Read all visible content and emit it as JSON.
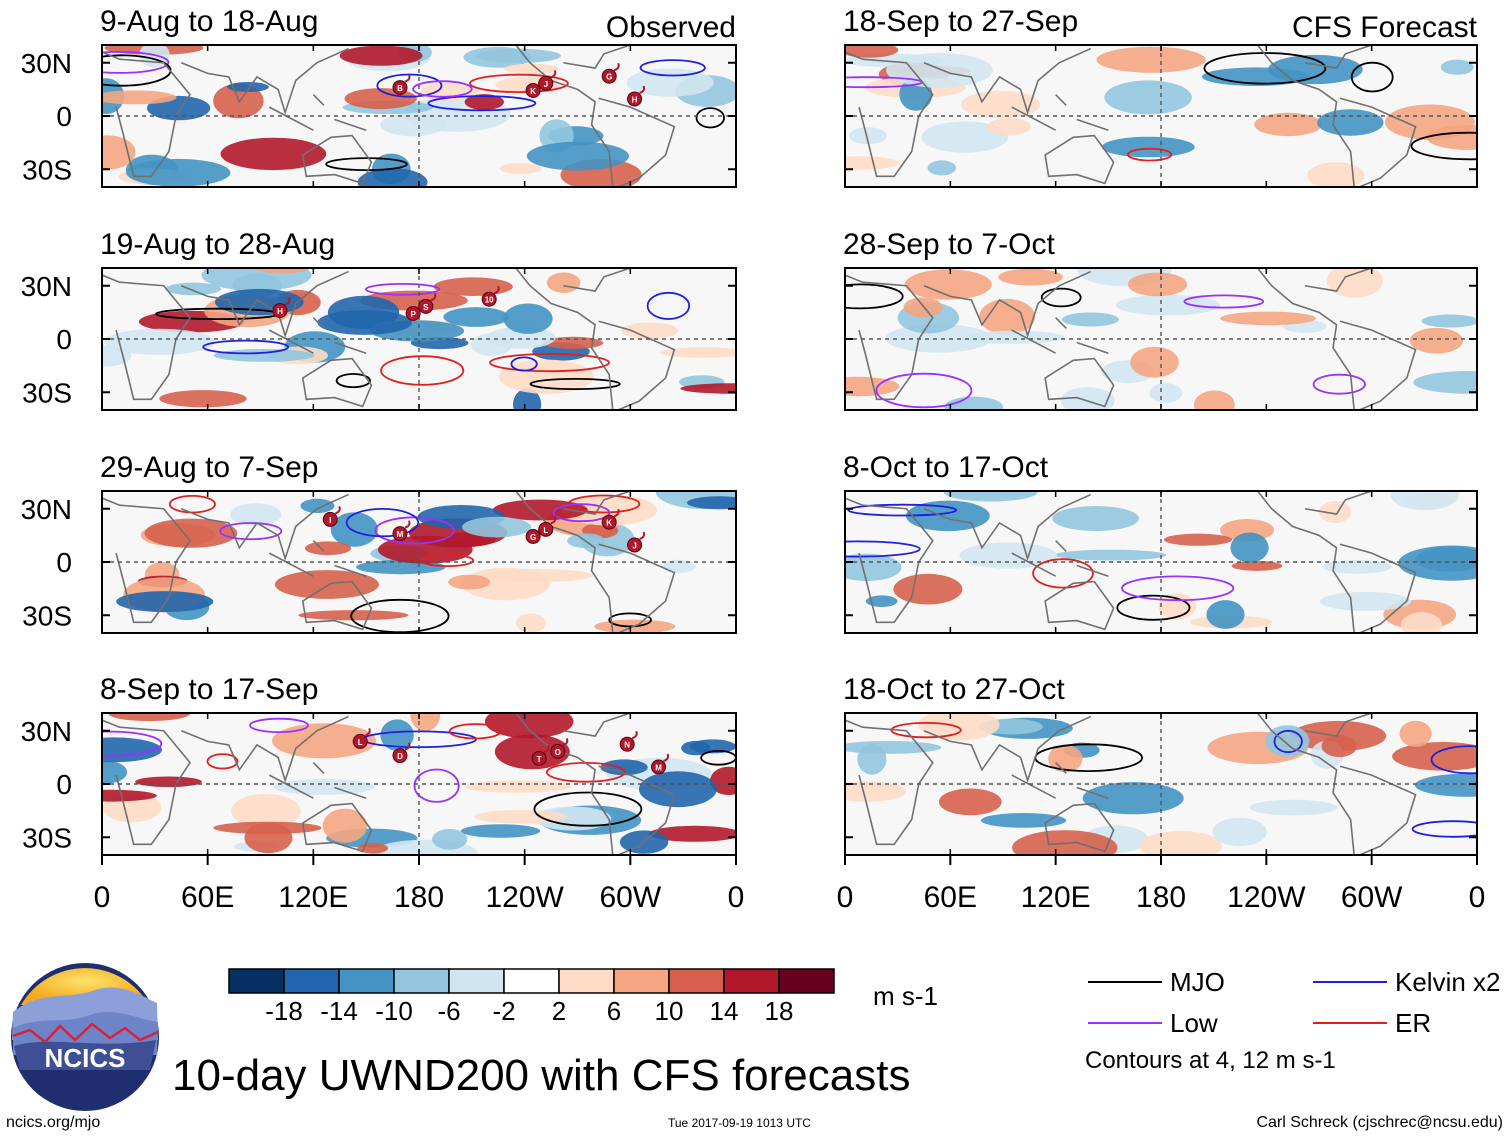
{
  "chart_data": {
    "type": "heatmap",
    "title": "10-day UWND200 with CFS forecasts",
    "units": "m s-1",
    "columns": [
      {
        "label": "Observed",
        "panels": [
          "9-Aug to 18-Aug",
          "19-Aug to 28-Aug",
          "29-Aug to 7-Sep",
          "8-Sep to 17-Sep"
        ]
      },
      {
        "label": "CFS Forecast",
        "panels": [
          "18-Sep to 27-Sep",
          "28-Sep to 7-Oct",
          "8-Oct to 17-Oct",
          "18-Oct to 27-Oct"
        ]
      }
    ],
    "y_ticks": [
      "30N",
      "0",
      "30S"
    ],
    "y_tick_values": [
      30,
      0,
      -30
    ],
    "ylim": [
      -40,
      40
    ],
    "x_ticks": [
      "0",
      "60E",
      "120E",
      "180",
      "120W",
      "60W",
      "0"
    ],
    "x_tick_values": [
      0,
      60,
      120,
      180,
      240,
      300,
      360
    ],
    "xlim": [
      0,
      360
    ],
    "colorbar": {
      "labels": [
        "-18",
        "-14",
        "-10",
        "-6",
        "-2",
        "2",
        "6",
        "10",
        "14",
        "18"
      ],
      "levels": [
        -18,
        -14,
        -10,
        -6,
        -2,
        2,
        6,
        10,
        14,
        18
      ],
      "colors": [
        "#053061",
        "#2166ac",
        "#4393c3",
        "#92c5de",
        "#d1e5f0",
        "#ffffff",
        "#fddbc7",
        "#f4a582",
        "#d6604d",
        "#b2182b",
        "#67001f"
      ]
    },
    "legend": [
      {
        "label": "MJO",
        "color": "#000000"
      },
      {
        "label": "Kelvin x2",
        "color": "#1f1fe0"
      },
      {
        "label": "Low",
        "color": "#9b30ff"
      },
      {
        "label": "ER",
        "color": "#e01f1f"
      }
    ],
    "contour_note": "Contours at 4, 12 m s-1",
    "storms": [
      [
        "B",
        "K",
        "J",
        "G",
        "H"
      ],
      [
        "H",
        "P",
        "S",
        "10"
      ],
      [
        "M",
        "G",
        "L",
        "K",
        "J",
        "I"
      ],
      [
        "D",
        "T",
        "O",
        "N",
        "M",
        "L"
      ],
      [],
      [],
      [],
      []
    ]
  },
  "footer": {
    "logo_text": "NCICS",
    "url": "ncics.org/mjo",
    "timestamp": "Tue 2017-09-19 1013 UTC",
    "author": "Carl Schreck (cjschrec@ncsu.edu)"
  }
}
